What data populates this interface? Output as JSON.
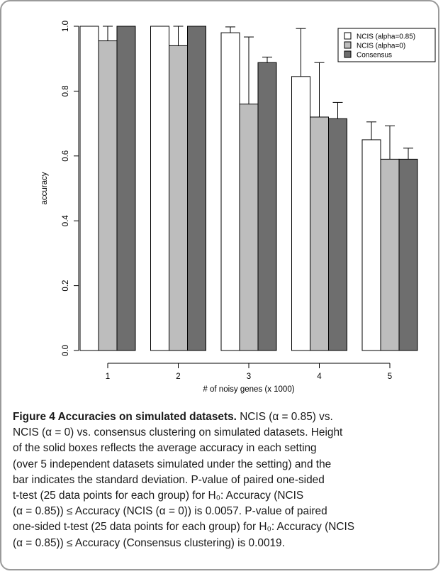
{
  "chart_data": {
    "type": "bar",
    "xlabel": "# of noisy genes (x 1000)",
    "ylabel": "accuracy",
    "ylim": [
      0,
      1
    ],
    "yticks": [
      "0.0",
      "0.2",
      "0.4",
      "0.6",
      "0.8",
      "1.0"
    ],
    "categories": [
      "1",
      "2",
      "3",
      "4",
      "5"
    ],
    "series": [
      {
        "name": "NCIS (alpha=0.85)",
        "color": "#ffffff",
        "values": [
          1.0,
          1.0,
          0.98,
          0.845,
          0.65
        ],
        "sd": [
          0.0,
          0.0,
          0.018,
          0.148,
          0.055
        ]
      },
      {
        "name": "NCIS (alpha=0)",
        "color": "#bdbdbd",
        "values": [
          0.955,
          0.94,
          0.76,
          0.72,
          0.59
        ],
        "sd": [
          0.045,
          0.06,
          0.207,
          0.168,
          0.103
        ]
      },
      {
        "name": "Consensus",
        "color": "#6e6e6e",
        "values": [
          1.0,
          1.0,
          0.888,
          0.715,
          0.59
        ],
        "sd": [
          0.0,
          0.0,
          0.017,
          0.05,
          0.034
        ]
      }
    ],
    "legend_position": "top-right",
    "grid": false
  },
  "caption": {
    "title": "Figure 4 Accuracies on simulated datasets.",
    "lines": [
      "NCIS (α = 0.85) vs.",
      "NCIS (α = 0) vs. consensus clustering on simulated datasets. Height",
      "of the solid boxes reflects the average accuracy in each setting",
      "(over 5 independent datasets simulated under the setting) and the",
      "bar indicates the standard deviation. P-value of paired one-sided",
      "t-test (25 data points for each group) for H₀: Accuracy (NCIS",
      "(α = 0.85)) ≤ Accuracy (NCIS (α = 0)) is 0.0057. P-value of paired",
      "one-sided t-test (25 data points for each group) for H₀: Accuracy (NCIS",
      "(α = 0.85)) ≤ Accuracy (Consensus clustering) is 0.0019."
    ]
  }
}
